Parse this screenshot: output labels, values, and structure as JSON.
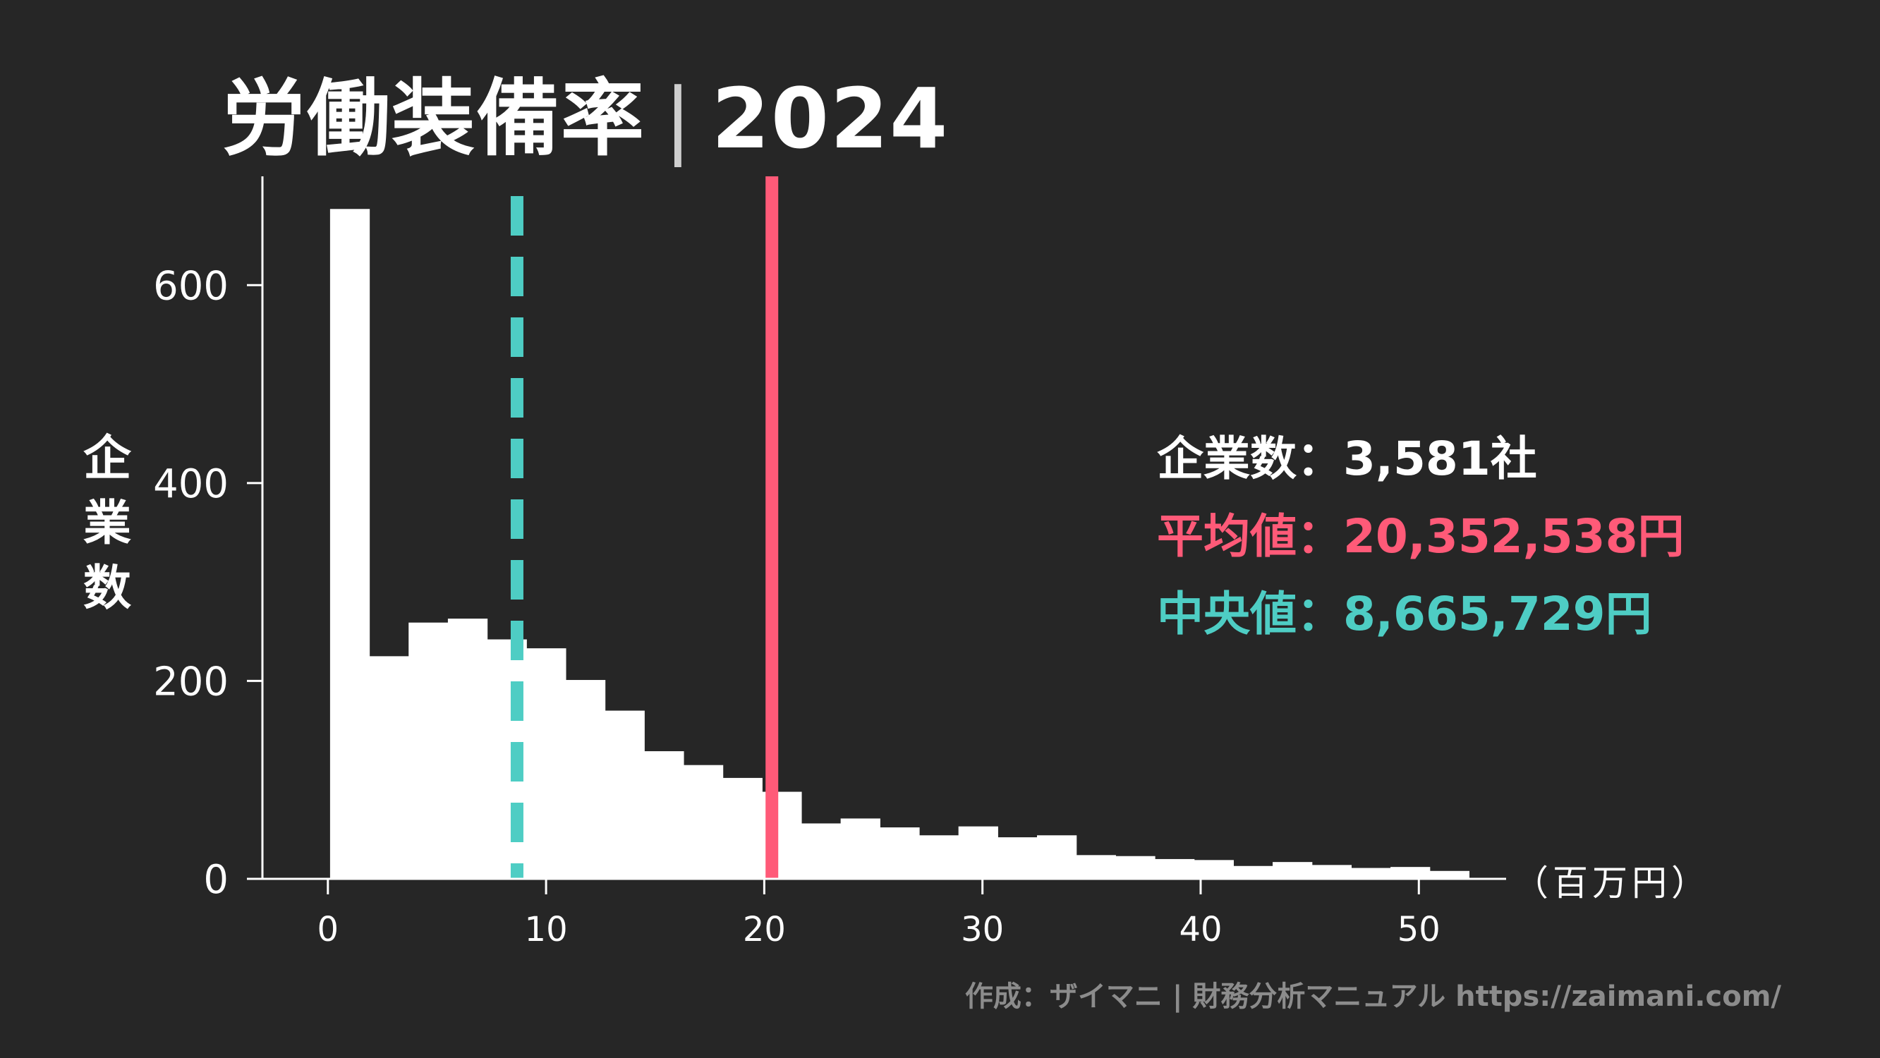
{
  "header": {
    "title": "労働装備率",
    "separator": "|",
    "year": "2024"
  },
  "stats": {
    "count_label": "企業数：",
    "count_value": "3,581社",
    "mean_label": "平均値：",
    "mean_value": "20,352,538円",
    "median_label": "中央値：",
    "median_value": "8,665,729円"
  },
  "footer": {
    "credit": "作成：ザイマニ | 財務分析マニュアル https://zaimani.com/"
  },
  "colors": {
    "background": "#262626",
    "bars": "#ffffff",
    "mean_line": "#ff5a78",
    "median_line": "#4ecdc4",
    "credit": "#8c8c8c"
  },
  "chart_data": {
    "type": "bar",
    "title": "労働装備率｜2024",
    "xlabel": "（百万円）",
    "ylabel": "企業数",
    "xlim": [
      -3,
      54
    ],
    "ylim": [
      0,
      710
    ],
    "xticks": [
      0,
      10,
      20,
      30,
      40,
      50
    ],
    "yticks": [
      0,
      200,
      400,
      600
    ],
    "bin_width": 1.8,
    "bin_start": 0.1,
    "values": [
      677,
      225,
      259,
      263,
      242,
      233,
      201,
      170,
      129,
      115,
      102,
      88,
      56,
      61,
      52,
      44,
      53,
      42,
      44,
      24,
      23,
      20,
      19,
      13,
      17,
      14,
      11,
      12,
      8
    ],
    "mean_line": 20.35,
    "median_line": 8.67,
    "grid": false,
    "legend": "none"
  }
}
